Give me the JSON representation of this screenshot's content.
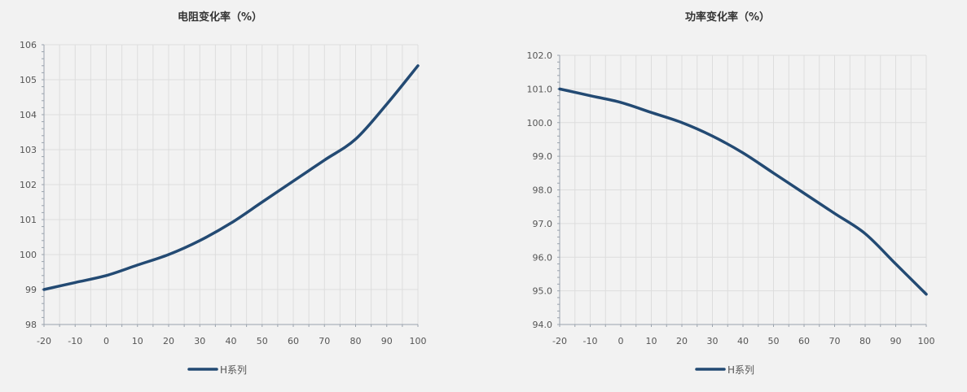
{
  "colors": {
    "series": "#234a73",
    "grid": "#dddddd",
    "axis": "#9aa3ad",
    "background": "#f2f2f2"
  },
  "chart_data": [
    {
      "type": "line",
      "title": "电阻变化率（%）",
      "xlabel": "",
      "ylabel": "",
      "x": [
        -20,
        -10,
        0,
        10,
        20,
        30,
        40,
        50,
        60,
        70,
        80,
        90,
        100
      ],
      "x_ticks": [
        "-20",
        "-10",
        "0",
        "10",
        "20",
        "30",
        "40",
        "50",
        "60",
        "70",
        "80",
        "90",
        "100"
      ],
      "y_ticks": [
        "98",
        "99",
        "100",
        "101",
        "102",
        "103",
        "104",
        "105",
        "106"
      ],
      "ylim": [
        98,
        106
      ],
      "grid": true,
      "legend_position": "bottom",
      "series": [
        {
          "name": "H系列",
          "values": [
            99.0,
            99.2,
            99.4,
            99.7,
            100.0,
            100.4,
            100.9,
            101.5,
            102.1,
            102.7,
            103.3,
            104.3,
            105.4
          ]
        }
      ]
    },
    {
      "type": "line",
      "title": "功率变化率（%）",
      "xlabel": "",
      "ylabel": "",
      "x": [
        -20,
        -10,
        0,
        10,
        20,
        30,
        40,
        50,
        60,
        70,
        80,
        90,
        100
      ],
      "x_ticks": [
        "-20",
        "-10",
        "0",
        "10",
        "20",
        "30",
        "40",
        "50",
        "60",
        "70",
        "80",
        "90",
        "100"
      ],
      "y_ticks": [
        "94.0",
        "95.0",
        "96.0",
        "97.0",
        "98.0",
        "99.0",
        "100.0",
        "101.0",
        "102.0"
      ],
      "ylim": [
        94,
        102
      ],
      "grid": true,
      "legend_position": "bottom",
      "series": [
        {
          "name": "H系列",
          "values": [
            101.0,
            100.8,
            100.6,
            100.3,
            100.0,
            99.6,
            99.1,
            98.5,
            97.9,
            97.3,
            96.7,
            95.8,
            94.9
          ]
        }
      ]
    }
  ]
}
